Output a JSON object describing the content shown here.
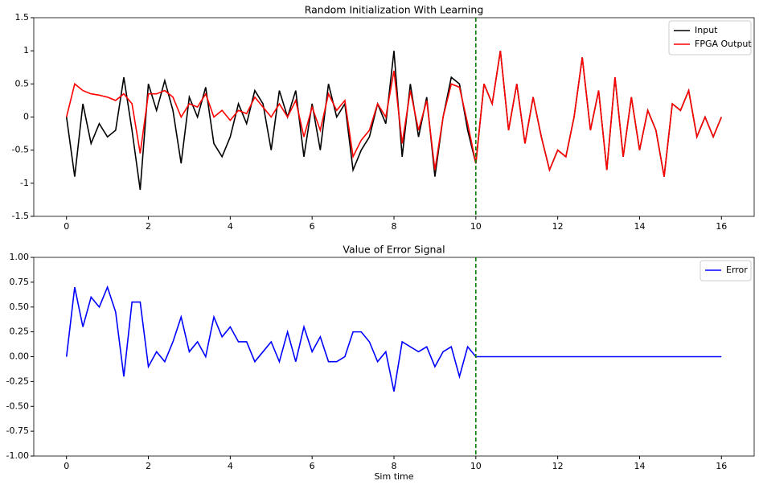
{
  "chart_data": [
    {
      "type": "line",
      "title": "Random Initialization With Learning",
      "x": [
        0,
        0.2,
        0.4,
        0.6,
        0.8,
        1.0,
        1.2,
        1.4,
        1.6,
        1.8,
        2.0,
        2.2,
        2.4,
        2.6,
        2.8,
        3.0,
        3.2,
        3.4,
        3.6,
        3.8,
        4.0,
        4.2,
        4.4,
        4.6,
        4.8,
        5.0,
        5.2,
        5.4,
        5.6,
        5.8,
        6.0,
        6.2,
        6.4,
        6.6,
        6.8,
        7.0,
        7.2,
        7.4,
        7.6,
        7.8,
        8.0,
        8.2,
        8.4,
        8.6,
        8.8,
        9.0,
        9.2,
        9.4,
        9.6,
        9.8,
        10.0,
        10.2,
        10.4,
        10.6,
        10.8,
        11.0,
        11.2,
        11.4,
        11.6,
        11.8,
        12.0,
        12.2,
        12.4,
        12.6,
        12.8,
        13.0,
        13.2,
        13.4,
        13.6,
        13.8,
        14.0,
        14.2,
        14.4,
        14.6,
        14.8,
        15.0,
        15.2,
        15.4,
        15.6,
        15.8,
        16.0
      ],
      "series": [
        {
          "name": "Input",
          "color": "#000000",
          "values": [
            0,
            -0.9,
            0.2,
            -0.4,
            -0.1,
            -0.3,
            -0.2,
            0.6,
            -0.2,
            -1.1,
            0.5,
            0.1,
            0.55,
            0.1,
            -0.7,
            0.3,
            0.0,
            0.45,
            -0.4,
            -0.6,
            -0.3,
            0.2,
            -0.1,
            0.4,
            0.2,
            -0.5,
            0.4,
            0.0,
            0.4,
            -0.6,
            0.2,
            -0.5,
            0.5,
            0.0,
            0.2,
            -0.8,
            -0.5,
            -0.3,
            0.2,
            -0.1,
            1.0,
            -0.6,
            0.5,
            -0.3,
            0.3,
            -0.9,
            0.0,
            0.6,
            0.5,
            -0.2,
            -0.7,
            0.5,
            0.2,
            1.0,
            -0.2,
            0.5,
            -0.4,
            0.3,
            -0.3,
            -0.8,
            -0.5,
            -0.6,
            0.0,
            0.9,
            -0.2,
            0.4,
            -0.8,
            0.6,
            -0.6,
            0.3,
            -0.5,
            0.1,
            -0.2,
            -0.9,
            0.2,
            0.1,
            0.4,
            -0.3,
            0.0,
            -0.3,
            0.0
          ]
        },
        {
          "name": "FPGA Output",
          "color": "#ff0000",
          "values": [
            0,
            0.5,
            0.4,
            0.35,
            0.33,
            0.3,
            0.25,
            0.35,
            0.2,
            -0.55,
            0.35,
            0.35,
            0.4,
            0.3,
            0.0,
            0.2,
            0.15,
            0.35,
            0.0,
            0.1,
            -0.05,
            0.1,
            0.05,
            0.3,
            0.15,
            0.0,
            0.2,
            0.0,
            0.25,
            -0.3,
            0.15,
            -0.2,
            0.35,
            0.1,
            0.25,
            -0.6,
            -0.35,
            -0.2,
            0.2,
            0.0,
            0.7,
            -0.4,
            0.4,
            -0.2,
            0.25,
            -0.8,
            0.0,
            0.5,
            0.45,
            -0.1,
            -0.7,
            0.5,
            0.2,
            1.0,
            -0.2,
            0.5,
            -0.4,
            0.3,
            -0.3,
            -0.8,
            -0.5,
            -0.6,
            0.0,
            0.9,
            -0.2,
            0.4,
            -0.8,
            0.6,
            -0.6,
            0.3,
            -0.5,
            0.1,
            -0.2,
            -0.9,
            0.2,
            0.1,
            0.4,
            -0.3,
            0.0,
            -0.3,
            0.0
          ]
        }
      ],
      "vline": {
        "value": 10,
        "color": "#008000"
      },
      "xlim": [
        -0.8,
        16.8
      ],
      "ylim": [
        -1.5,
        1.5
      ],
      "xticks": [
        0,
        2,
        4,
        6,
        8,
        10,
        12,
        14,
        16
      ],
      "yticks": [
        -1.5,
        -1.0,
        -0.5,
        0.0,
        0.5,
        1.0,
        1.5
      ],
      "legend": "upper-right"
    },
    {
      "type": "line",
      "title": "Value of Error Signal",
      "x_label": "Sim time",
      "x": [
        0,
        0.2,
        0.4,
        0.6,
        0.8,
        1.0,
        1.2,
        1.4,
        1.6,
        1.8,
        2.0,
        2.2,
        2.4,
        2.6,
        2.8,
        3.0,
        3.2,
        3.4,
        3.6,
        3.8,
        4.0,
        4.2,
        4.4,
        4.6,
        4.8,
        5.0,
        5.2,
        5.4,
        5.6,
        5.8,
        6.0,
        6.2,
        6.4,
        6.6,
        6.8,
        7.0,
        7.2,
        7.4,
        7.6,
        7.8,
        8.0,
        8.2,
        8.4,
        8.6,
        8.8,
        9.0,
        9.2,
        9.4,
        9.6,
        9.8,
        10.0,
        10.2,
        10.4,
        10.6,
        10.8,
        11.0,
        11.2,
        11.4,
        11.6,
        11.8,
        12.0,
        12.2,
        12.4,
        12.6,
        12.8,
        13.0,
        13.2,
        13.4,
        13.6,
        13.8,
        14.0,
        14.2,
        14.4,
        14.6,
        14.8,
        15.0,
        15.2,
        15.4,
        15.6,
        15.8,
        16.0
      ],
      "series": [
        {
          "name": "Error",
          "color": "#0000ff",
          "values": [
            0,
            0.7,
            0.3,
            0.6,
            0.5,
            0.7,
            0.45,
            -0.2,
            0.55,
            0.55,
            -0.1,
            0.05,
            -0.05,
            0.15,
            0.4,
            0.05,
            0.15,
            0.0,
            0.4,
            0.2,
            0.3,
            0.15,
            0.15,
            -0.05,
            0.05,
            0.15,
            -0.05,
            0.25,
            -0.05,
            0.3,
            0.05,
            0.2,
            -0.05,
            -0.05,
            0.0,
            0.25,
            0.25,
            0.15,
            -0.05,
            0.05,
            -0.35,
            0.15,
            0.1,
            0.05,
            0.1,
            -0.1,
            0.05,
            0.1,
            -0.2,
            0.1,
            0.0,
            0,
            0,
            0,
            0,
            0,
            0,
            0,
            0,
            0,
            0,
            0,
            0,
            0,
            0,
            0,
            0,
            0,
            0,
            0,
            0,
            0,
            0,
            0,
            0,
            0,
            0,
            0,
            0,
            0,
            0
          ]
        }
      ],
      "vline": {
        "value": 10,
        "color": "#008000"
      },
      "xlim": [
        -0.8,
        16.8
      ],
      "ylim": [
        -1,
        1
      ],
      "xticks": [
        0,
        2,
        4,
        6,
        8,
        10,
        12,
        14,
        16
      ],
      "yticks": [
        {
          "value": -1,
          "label": "-1.00"
        },
        {
          "value": -0.75,
          "label": "-0.75"
        },
        {
          "value": -0.5,
          "label": "-0.50"
        },
        {
          "value": -0.25,
          "label": "-0.25"
        },
        {
          "value": 0,
          "label": "0.00"
        },
        {
          "value": 0.25,
          "label": "0.25"
        },
        {
          "value": 0.5,
          "label": "0.50"
        },
        {
          "value": 0.75,
          "label": "0.75"
        },
        {
          "value": 1,
          "label": "1.00"
        }
      ],
      "legend": "upper-right"
    }
  ]
}
